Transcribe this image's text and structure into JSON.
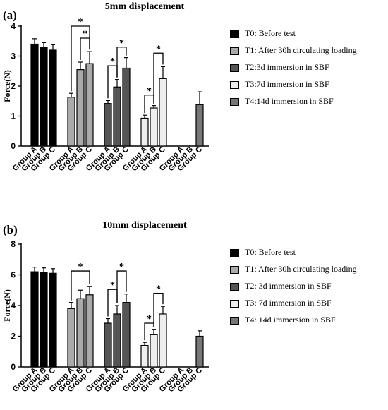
{
  "chart_data": [
    {
      "panel_label": "(a)",
      "type": "bar",
      "title": "5mm displacement",
      "ylabel": "Force(N)",
      "ylim": [
        0,
        4
      ],
      "yticks": [
        0,
        1,
        2,
        3,
        4
      ],
      "grid": false,
      "legend_position": "right",
      "categories": [
        "Group A",
        "Group B",
        "Group C"
      ],
      "series": [
        {
          "name": "T0: Before test",
          "color": "#000000",
          "values": [
            3.4,
            3.3,
            3.2
          ],
          "errors": [
            0.18,
            0.15,
            0.18
          ]
        },
        {
          "name": "T1: After 30h circulating loading",
          "color": "#aaaaaa",
          "values": [
            1.63,
            2.55,
            2.75
          ],
          "errors": [
            0.13,
            0.25,
            0.4
          ]
        },
        {
          "name": "T2:3d immersion in SBF",
          "color": "#555555",
          "values": [
            1.42,
            1.97,
            2.6
          ],
          "errors": [
            0.1,
            0.25,
            0.35
          ]
        },
        {
          "name": "T3:7d immersion in SBF",
          "color": "#eeeeee",
          "values": [
            0.93,
            1.27,
            2.25
          ],
          "errors": [
            0.1,
            0.08,
            0.4
          ]
        },
        {
          "name": "T4:14d immersion in SBF",
          "color": "#777777",
          "values": [
            0,
            0,
            1.38
          ],
          "errors": [
            0,
            0,
            0.43
          ]
        }
      ],
      "significance": [
        {
          "group": 1,
          "from": 0,
          "to": 2,
          "y": 4.0,
          "label": "*"
        },
        {
          "group": 1,
          "from": 1,
          "to": 2,
          "y": 3.6,
          "label": "*"
        },
        {
          "group": 2,
          "from": 0,
          "to": 1,
          "y": 2.68,
          "label": "*"
        },
        {
          "group": 2,
          "from": 1,
          "to": 2,
          "y": 3.3,
          "label": "*"
        },
        {
          "group": 3,
          "from": 0,
          "to": 1,
          "y": 1.7,
          "label": "*"
        },
        {
          "group": 3,
          "from": 1,
          "to": 2,
          "y": 3.1,
          "label": "*"
        }
      ]
    },
    {
      "panel_label": "(b)",
      "type": "bar",
      "title": "10mm displacement",
      "ylabel": "Force(N)",
      "ylim": [
        0,
        8
      ],
      "yticks": [
        0,
        2,
        4,
        6,
        8
      ],
      "grid": false,
      "legend_position": "right",
      "categories": [
        "Group A",
        "Group B",
        "Group C"
      ],
      "series": [
        {
          "name": "T0: Before test",
          "color": "#000000",
          "values": [
            6.2,
            6.15,
            6.1
          ],
          "errors": [
            0.3,
            0.3,
            0.3
          ]
        },
        {
          "name": "T1: After 30h circulating loading",
          "color": "#aaaaaa",
          "values": [
            3.8,
            4.45,
            4.7
          ],
          "errors": [
            0.4,
            0.55,
            0.55
          ]
        },
        {
          "name": "T2: 3d immersion in SBF",
          "color": "#555555",
          "values": [
            2.85,
            3.45,
            4.2
          ],
          "errors": [
            0.3,
            0.55,
            0.55
          ]
        },
        {
          "name": "T3: 7d immersion in SBF",
          "color": "#eeeeee",
          "values": [
            1.4,
            2.1,
            3.45
          ],
          "errors": [
            0.2,
            0.35,
            0.5
          ]
        },
        {
          "name": "T4: 14d immersion in SBF",
          "color": "#777777",
          "values": [
            0,
            0,
            2.0
          ],
          "errors": [
            0,
            0,
            0.35
          ]
        }
      ],
      "significance": [
        {
          "group": 1,
          "from": 0,
          "to": 2,
          "y": 6.25,
          "label": "*"
        },
        {
          "group": 2,
          "from": 0,
          "to": 1,
          "y": 5.05,
          "label": "*"
        },
        {
          "group": 2,
          "from": 1,
          "to": 2,
          "y": 6.25,
          "label": "*"
        },
        {
          "group": 3,
          "from": 0,
          "to": 1,
          "y": 2.85,
          "label": "*"
        },
        {
          "group": 3,
          "from": 1,
          "to": 2,
          "y": 4.8,
          "label": "*"
        }
      ]
    }
  ]
}
